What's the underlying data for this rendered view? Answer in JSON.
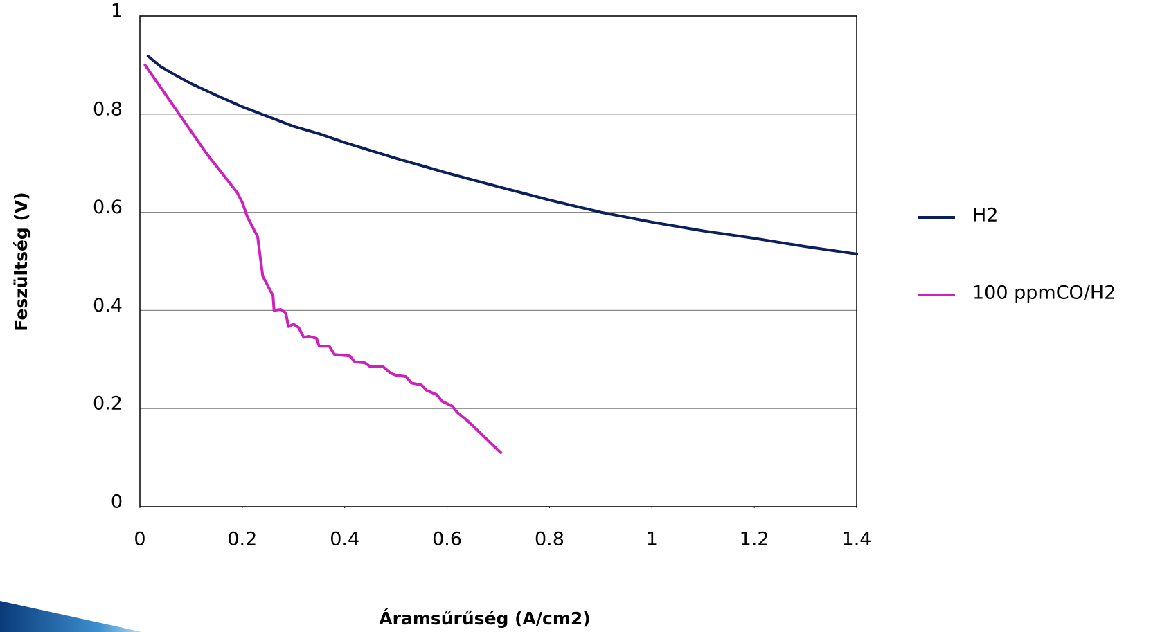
{
  "chart_data": {
    "type": "line",
    "xlabel": "Áramsűrűség (A/cm2)",
    "ylabel": "Feszültség (V)",
    "xlim": [
      0,
      1.4
    ],
    "xticks": [
      0,
      0.2,
      0.4,
      0.6,
      0.8,
      1,
      1.2,
      1.4
    ],
    "ylim": [
      0,
      1
    ],
    "yticks": [
      0,
      0.2,
      0.4,
      0.6,
      0.8,
      1
    ],
    "grid": true,
    "legend": "right",
    "series": [
      {
        "name": "H2",
        "color": "#0b1f5c",
        "x": [
          0.016,
          0.04,
          0.07,
          0.1,
          0.15,
          0.2,
          0.25,
          0.3,
          0.35,
          0.4,
          0.45,
          0.5,
          0.55,
          0.6,
          0.7,
          0.8,
          0.9,
          1.0,
          1.1,
          1.2,
          1.3,
          1.4
        ],
        "values": [
          0.918,
          0.897,
          0.879,
          0.862,
          0.838,
          0.815,
          0.795,
          0.775,
          0.76,
          0.742,
          0.726,
          0.71,
          0.695,
          0.68,
          0.652,
          0.625,
          0.6,
          0.58,
          0.562,
          0.547,
          0.53,
          0.515
        ]
      },
      {
        "name": "100 ppmCO/H2",
        "color": "#cc22bb",
        "x": [
          0.01,
          0.03,
          0.05,
          0.07,
          0.1,
          0.13,
          0.16,
          0.19,
          0.2,
          0.21,
          0.23,
          0.24,
          0.26,
          0.262,
          0.275,
          0.285,
          0.29,
          0.3,
          0.31,
          0.32,
          0.33,
          0.345,
          0.35,
          0.37,
          0.38,
          0.41,
          0.42,
          0.44,
          0.45,
          0.475,
          0.49,
          0.5,
          0.52,
          0.53,
          0.55,
          0.56,
          0.58,
          0.59,
          0.61,
          0.62,
          0.64,
          0.66,
          0.68,
          0.7,
          0.705
        ],
        "values": [
          0.9,
          0.87,
          0.84,
          0.81,
          0.765,
          0.72,
          0.68,
          0.64,
          0.62,
          0.59,
          0.55,
          0.47,
          0.43,
          0.4,
          0.402,
          0.395,
          0.367,
          0.372,
          0.365,
          0.345,
          0.347,
          0.343,
          0.327,
          0.327,
          0.31,
          0.307,
          0.295,
          0.293,
          0.285,
          0.285,
          0.272,
          0.268,
          0.265,
          0.252,
          0.248,
          0.237,
          0.228,
          0.215,
          0.205,
          0.192,
          0.175,
          0.155,
          0.135,
          0.115,
          0.11
        ]
      }
    ]
  }
}
